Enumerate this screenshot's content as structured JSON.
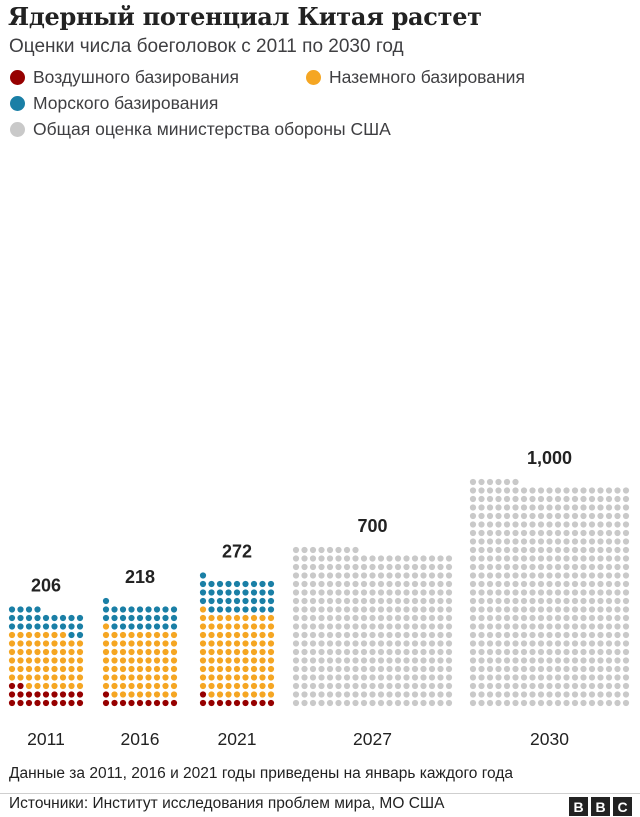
{
  "title": "Ядерный потенциал Китая растет",
  "subtitle": "Оценки числа боеголовок с 2011 по 2030 год",
  "colors": {
    "air": "#960000",
    "ground": "#f5a623",
    "sea": "#1a7fa6",
    "dod": "#c9c9c9"
  },
  "legend": [
    {
      "key": "air",
      "label": "Воздушного базирования"
    },
    {
      "key": "ground",
      "label": "Наземного базирования"
    },
    {
      "key": "sea",
      "label": "Морского базирования"
    },
    {
      "key": "dod",
      "label": "Общая оценка министерства обороны США"
    }
  ],
  "chart_data": {
    "type": "dot-stacked-bar",
    "unit": "one dot = 2 warheads",
    "categories": [
      "2011",
      "2016",
      "2021",
      "2027",
      "2030"
    ],
    "totals": [
      206,
      218,
      272,
      700,
      1000
    ],
    "total_labels": [
      "206",
      "218",
      "272",
      "700",
      "1,000"
    ],
    "series": [
      {
        "key": "air",
        "name": "Воздушного базирования",
        "values": [
          40,
          20,
          20,
          0,
          0
        ]
      },
      {
        "key": "ground",
        "name": "Наземного базирования",
        "values": [
          118,
          144,
          180,
          0,
          0
        ]
      },
      {
        "key": "sea",
        "name": "Морского базирования",
        "values": [
          48,
          54,
          72,
          0,
          0
        ]
      },
      {
        "key": "dod",
        "name": "Общая оценка министерства обороны США",
        "values": [
          0,
          0,
          0,
          700,
          1000
        ]
      }
    ]
  },
  "footnote": "Данные за 2011, 2016 и 2021 годы приведены на январь каждого года",
  "source": "Источники: Институт исследования проблем мира, МО США",
  "logo": [
    "B",
    "B",
    "C"
  ]
}
